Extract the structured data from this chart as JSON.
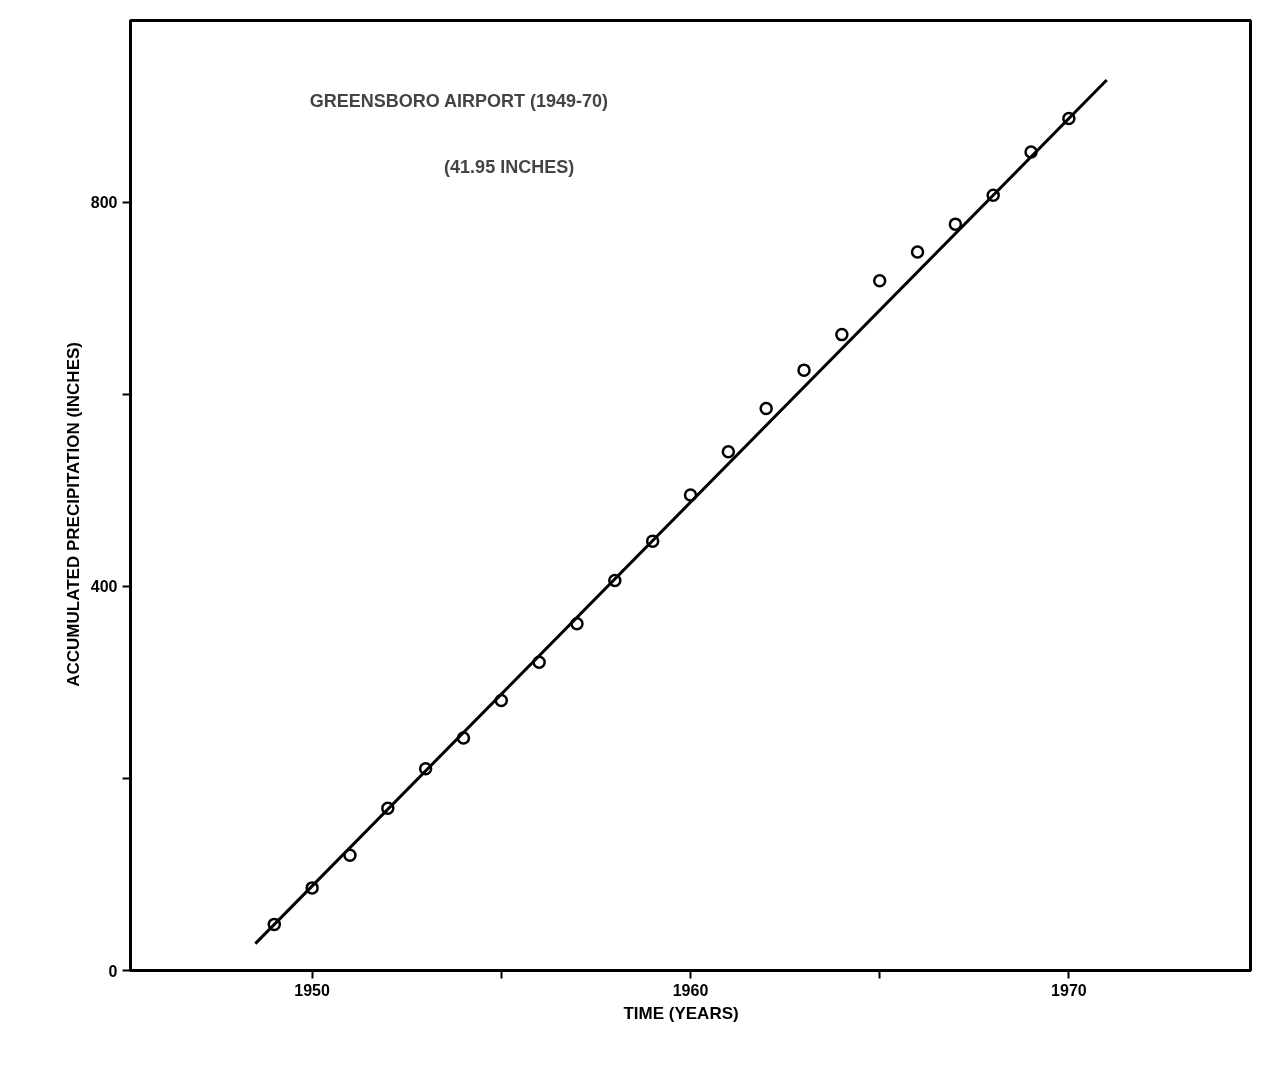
{
  "chart_data": {
    "type": "scatter",
    "title": "GREENSBORO   AIRPORT  (1949-70)",
    "subtitle": "(41.95  INCHES)",
    "xlabel": "TIME     (YEARS)",
    "ylabel": "ACCUMULATED     PRECIPITATION     (INCHES)",
    "series": [
      {
        "color": "#000000",
        "marker": "circle",
        "x": [
          1949,
          1950,
          1951,
          1952,
          1953,
          1954,
          1955,
          1956,
          1957,
          1958,
          1959,
          1960,
          1961,
          1962,
          1963,
          1964,
          1965,
          1966,
          1967,
          1968,
          1969,
          1970
        ],
        "values": [
          48,
          86,
          120,
          169,
          210,
          242,
          281,
          321,
          361,
          406,
          447,
          495,
          540,
          585,
          625,
          662,
          718,
          748,
          777,
          807,
          852,
          887
        ]
      },
      {
        "type": "line",
        "color": "#000000",
        "marker": "none",
        "x": [
          1948.5,
          1971
        ],
        "values": [
          28,
          927
        ]
      }
    ],
    "xlim": [
      1945.2,
      1974.8
    ],
    "ylim": [
      0,
      989
    ],
    "xticks": [
      1950,
      {
        "value": 1955,
        "label": null
      },
      1960,
      {
        "value": 1965,
        "label": null
      },
      1970
    ],
    "yticks": [
      0,
      {
        "value": 200,
        "label": null
      },
      400,
      {
        "value": 600,
        "label": null
      },
      800
    ],
    "grid": false
  }
}
